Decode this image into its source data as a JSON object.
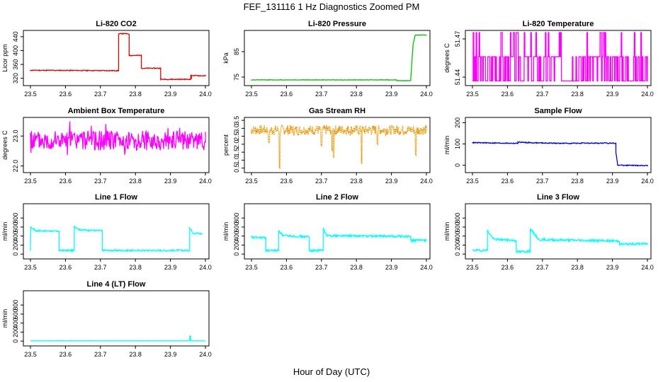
{
  "figure": {
    "title": "FEF_131116  1 Hz Diagnostics Zoomed PM",
    "xlabel": "Hour of Day (UTC)"
  },
  "chart_data": [
    {
      "type": "line",
      "title": "Li-820 CO2",
      "ylabel": "Licor ppm",
      "color": "#e00000",
      "xlim": [
        23.5,
        24.0
      ],
      "xticks": [
        "23.5",
        "23.6",
        "23.7",
        "23.8",
        "23.9",
        "24.0"
      ],
      "ylim": [
        305,
        452
      ],
      "yticks": [
        "320",
        "360",
        "400",
        "440"
      ],
      "series": [
        {
          "name": "CO2",
          "x": [
            23.5,
            23.752,
            23.752,
            23.762,
            23.762,
            23.782,
            23.782,
            23.785,
            23.785,
            23.817,
            23.817,
            23.833,
            23.833,
            23.872,
            23.872,
            23.958,
            23.958,
            23.96,
            23.96,
            24.0
          ],
          "y": [
            343,
            342,
            448,
            449,
            449,
            448,
            386,
            386,
            386,
            386,
            349,
            349,
            349,
            349,
            317,
            317,
            330,
            318,
            328,
            327
          ],
          "noise": 1.2
        }
      ]
    },
    {
      "type": "line",
      "title": "Li-820 Pressure",
      "ylabel": "kPa",
      "color": "#00c000",
      "xlim": [
        23.5,
        24.0
      ],
      "xticks": [
        "23.5",
        "23.6",
        "23.7",
        "23.8",
        "23.9",
        "24.0"
      ],
      "ylim": [
        72.5,
        92.5
      ],
      "yticks": [
        "75",
        "85"
      ],
      "series": [
        {
          "name": "Pressure",
          "x": [
            23.5,
            23.915,
            23.915,
            23.955,
            23.962,
            23.968,
            24.0
          ],
          "y": [
            73.9,
            73.9,
            73.6,
            73.6,
            88.0,
            91.5,
            91.5
          ],
          "noise": 0.08
        }
      ]
    },
    {
      "type": "line",
      "title": "Li-820 Temperature",
      "ylabel": "degrees C",
      "color": "#ff00ff",
      "xlim": [
        23.5,
        24.0
      ],
      "xticks": [
        "23.5",
        "23.6",
        "23.7",
        "23.8",
        "23.9",
        "24.0"
      ],
      "ylim": [
        51.435,
        51.475
      ],
      "yticks": [
        "51.44",
        "51.47"
      ],
      "series": [
        {
          "name": "Temperature",
          "levels": [
            51.437,
            51.456,
            51.475
          ],
          "level_weights": [
            0.45,
            0.45,
            0.1
          ],
          "seed": 3
        }
      ]
    },
    {
      "type": "line",
      "title": "Ambient Box Temperature",
      "ylabel": "degrees C",
      "color": "#ff00ff",
      "xlim": [
        23.5,
        24.0
      ],
      "xticks": [
        "23.5",
        "23.6",
        "23.7",
        "23.8",
        "23.9",
        "24.0"
      ],
      "ylim": [
        21.85,
        23.55
      ],
      "yticks": [
        "22.0",
        "23.0"
      ],
      "series": [
        {
          "name": "Ambient",
          "x": [
            23.5,
            24.0
          ],
          "y": [
            22.85,
            22.85
          ],
          "noise": 0.33,
          "spikes": 0.12,
          "seed": 5
        }
      ]
    },
    {
      "type": "scatter",
      "title": "Gas Stream RH",
      "ylabel": "percent",
      "color": "#e69500",
      "xlim": [
        23.5,
        24.0
      ],
      "xticks": [
        "23.5",
        "23.6",
        "23.7",
        "23.8",
        "23.9",
        "24.0"
      ],
      "ylim": [
        0.35,
        3.55
      ],
      "yticks": [
        "0.5",
        "1.0",
        "1.5",
        "2.0",
        "2.5",
        "3.0",
        "3.5"
      ],
      "series": [
        {
          "name": "RH",
          "x": [
            23.5,
            24.0
          ],
          "y": [
            2.9,
            2.9
          ],
          "noise": 0.3,
          "dips": [
            [
              23.58,
              0.5
            ],
            [
              23.735,
              1.2
            ],
            [
              23.815,
              0.8
            ],
            [
              23.73,
              1.6
            ],
            [
              23.97,
              1.3
            ],
            [
              23.55,
              2.1
            ],
            [
              23.7,
              1.9
            ],
            [
              23.86,
              2.0
            ]
          ],
          "seed": 7
        }
      ]
    },
    {
      "type": "line",
      "title": "Sample Flow",
      "ylabel": "ml/min",
      "color": "#0000dd",
      "xlim": [
        23.5,
        24.0
      ],
      "xticks": [
        "23.5",
        "23.6",
        "23.7",
        "23.8",
        "23.9",
        "24.0"
      ],
      "ylim": [
        -25,
        215
      ],
      "yticks": [
        "0",
        "100",
        "200"
      ],
      "series": [
        {
          "name": "Sample",
          "x": [
            23.5,
            23.63,
            23.63,
            23.66,
            23.75,
            23.91,
            23.91,
            23.915,
            24.0
          ],
          "y": [
            106,
            103,
            109,
            106,
            103,
            104,
            60,
            0,
            -2
          ],
          "noise": 2.2
        }
      ]
    },
    {
      "type": "line",
      "title": "Line 1 Flow",
      "ylabel": "ml/min",
      "color": "#00ffff",
      "xlim": [
        23.5,
        24.0
      ],
      "xticks": [
        "23.5",
        "23.6",
        "23.7",
        "23.8",
        "23.9",
        "24.0"
      ],
      "ylim": [
        -60,
        1070
      ],
      "yticks": [
        "0",
        "200",
        "400",
        "600",
        "800"
      ],
      "series": [
        {
          "name": "Line 1",
          "x": [
            23.5,
            23.501,
            23.515,
            23.582,
            23.582,
            23.625,
            23.625,
            23.64,
            23.705,
            23.705,
            23.955,
            23.955,
            23.965,
            23.99
          ],
          "y": [
            90,
            600,
            520,
            505,
            80,
            80,
            620,
            540,
            515,
            80,
            80,
            580,
            470,
            450
          ],
          "noise": 18
        }
      ]
    },
    {
      "type": "line",
      "title": "Line 2 Flow",
      "ylabel": "ml/min",
      "color": "#00ffff",
      "xlim": [
        23.5,
        24.0
      ],
      "xticks": [
        "23.5",
        "23.6",
        "23.7",
        "23.8",
        "23.9",
        "24.0"
      ],
      "ylim": [
        -60,
        1070
      ],
      "yticks": [
        "0",
        "200",
        "400",
        "600",
        "800"
      ],
      "series": [
        {
          "name": "Line 2",
          "x": [
            23.5,
            23.541,
            23.541,
            23.578,
            23.578,
            23.59,
            23.665,
            23.665,
            23.705,
            23.705,
            23.715,
            23.955,
            23.955,
            24.0
          ],
          "y": [
            370,
            360,
            80,
            80,
            520,
            410,
            380,
            80,
            80,
            560,
            410,
            390,
            300,
            310
          ],
          "noise": 25
        }
      ]
    },
    {
      "type": "line",
      "title": "Line 3 Flow",
      "ylabel": "ml/min",
      "color": "#00ffff",
      "xlim": [
        23.5,
        24.0
      ],
      "xticks": [
        "23.5",
        "23.6",
        "23.7",
        "23.8",
        "23.9",
        "24.0"
      ],
      "ylim": [
        -60,
        1070
      ],
      "yticks": [
        "0",
        "200",
        "400",
        "600",
        "800"
      ],
      "series": [
        {
          "name": "Line 3",
          "x": [
            23.5,
            23.508,
            23.543,
            23.543,
            23.56,
            23.625,
            23.625,
            23.665,
            23.665,
            23.69,
            23.92,
            23.92,
            24.0
          ],
          "y": [
            80,
            80,
            90,
            520,
            330,
            300,
            50,
            60,
            560,
            320,
            290,
            220,
            230
          ],
          "noise": 25
        }
      ]
    },
    {
      "type": "line",
      "title": "Line 4 (LT) Flow",
      "ylabel": "ml/min",
      "color": "#00ffff",
      "xlim": [
        23.5,
        24.0
      ],
      "xticks": [
        "23.5",
        "23.6",
        "23.7",
        "23.8",
        "23.9",
        "24.0"
      ],
      "ylim": [
        -60,
        1070
      ],
      "yticks": [
        "0",
        "200",
        "400",
        "600",
        "800"
      ],
      "series": [
        {
          "name": "Line 4",
          "x": [
            23.5,
            23.955,
            23.955,
            23.958,
            23.958,
            24.0
          ],
          "y": [
            5,
            5,
            110,
            110,
            5,
            5
          ],
          "noise": 2
        }
      ]
    }
  ]
}
